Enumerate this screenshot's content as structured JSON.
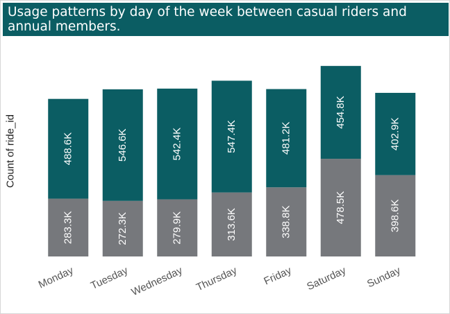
{
  "title": "Usage patterns by day of the week between casual riders and annual members.",
  "colors": {
    "title_bar": "#0b5d63",
    "member": "#0b5d63",
    "casual": "#76787c",
    "axis_text": "#555555"
  },
  "chart_data": {
    "type": "bar",
    "stacked": true,
    "title": "Usage patterns by day of the week between casual riders and annual members.",
    "xlabel": "",
    "ylabel": "Count of ride_id",
    "categories": [
      "Monday",
      "Tuesday",
      "Wednesday",
      "Thursday",
      "Friday",
      "Saturday",
      "Sunday"
    ],
    "series": [
      {
        "color": "#76787c",
        "values": [
          283.3,
          272.3,
          279.9,
          313.6,
          338.8,
          478.5,
          398.6
        ],
        "labels": [
          "283.3K",
          "272.3K",
          "279.9K",
          "313.6K",
          "338.8K",
          "478.5K",
          "398.6K"
        ]
      },
      {
        "color": "#0b5d63",
        "values": [
          488.6,
          546.6,
          542.4,
          547.4,
          481.2,
          454.8,
          402.9
        ],
        "labels": [
          "488.6K",
          "546.6K",
          "542.4K",
          "547.4K",
          "481.2K",
          "454.8K",
          "402.9K"
        ]
      }
    ],
    "unit": "K",
    "grid": false,
    "legend": "none"
  }
}
